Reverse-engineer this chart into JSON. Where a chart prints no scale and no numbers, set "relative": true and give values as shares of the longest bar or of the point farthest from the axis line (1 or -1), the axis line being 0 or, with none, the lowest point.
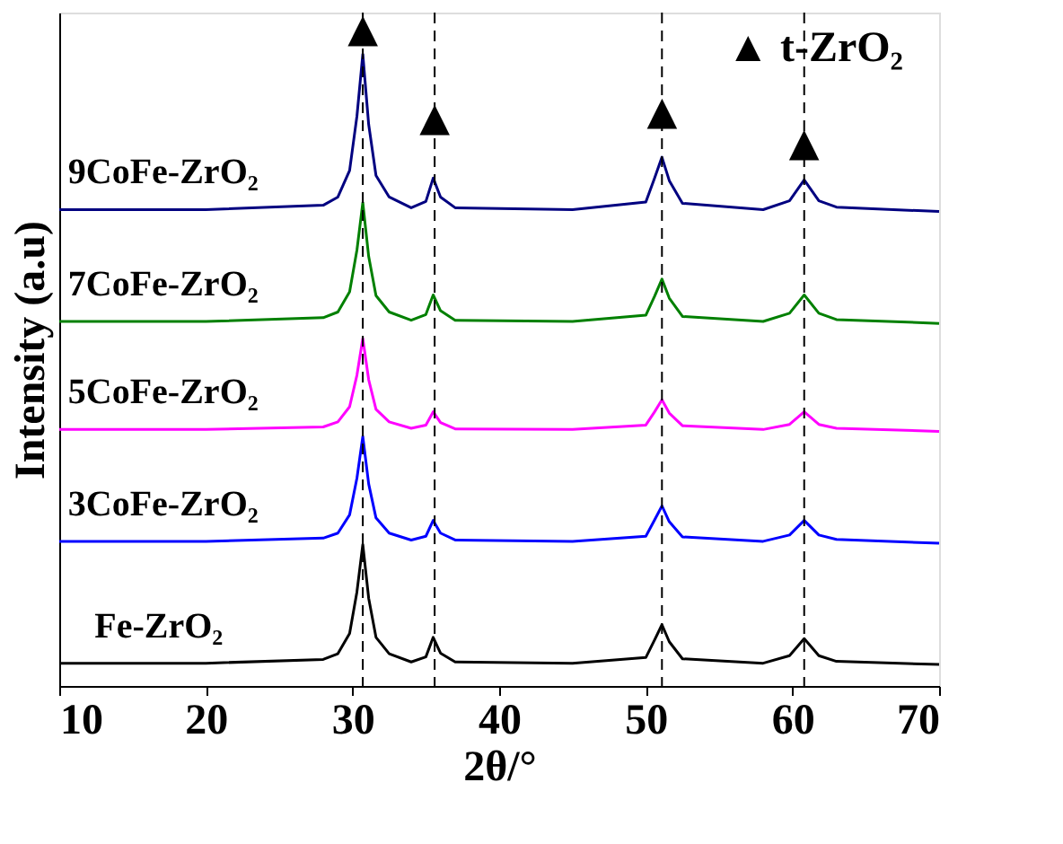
{
  "chart_data": {
    "type": "line",
    "relative": true,
    "xlabel": "2θ/°",
    "ylabel": "Intensity (a.u)",
    "xlim": [
      10,
      70
    ],
    "xticks": [
      10,
      20,
      30,
      40,
      50,
      60,
      70
    ],
    "tick_labels": "x",
    "grid": false,
    "legend": false,
    "line_style": "solid",
    "marker": "none",
    "x": [
      10,
      20,
      28,
      29,
      29.8,
      30.3,
      30.7,
      31.1,
      31.6,
      32.5,
      34,
      35,
      35.5,
      36,
      37,
      45,
      50,
      50.6,
      51.1,
      51.6,
      52.5,
      58,
      59.8,
      60.8,
      61.8,
      63,
      70
    ],
    "series": [
      {
        "name": "Fe-ZrO₂",
        "color": "#000000",
        "values": [
          0.036,
          0.036,
          0.042,
          0.051,
          0.083,
          0.149,
          0.224,
          0.139,
          0.077,
          0.051,
          0.038,
          0.046,
          0.077,
          0.052,
          0.038,
          0.036,
          0.045,
          0.073,
          0.097,
          0.07,
          0.043,
          0.036,
          0.048,
          0.075,
          0.048,
          0.039,
          0.034
        ]
      },
      {
        "name": "3CoFe-ZrO₂",
        "color": "#0000ff",
        "values": [
          0.229,
          0.229,
          0.234,
          0.242,
          0.271,
          0.329,
          0.395,
          0.32,
          0.266,
          0.242,
          0.231,
          0.237,
          0.262,
          0.242,
          0.231,
          0.229,
          0.237,
          0.263,
          0.285,
          0.26,
          0.236,
          0.229,
          0.239,
          0.262,
          0.239,
          0.232,
          0.226
        ]
      },
      {
        "name": "5CoFe-ZrO₂",
        "color": "#ff00ff",
        "values": [
          0.406,
          0.406,
          0.41,
          0.418,
          0.442,
          0.492,
          0.55,
          0.485,
          0.438,
          0.418,
          0.408,
          0.413,
          0.434,
          0.417,
          0.407,
          0.406,
          0.413,
          0.434,
          0.453,
          0.432,
          0.412,
          0.406,
          0.414,
          0.434,
          0.414,
          0.408,
          0.403
        ]
      },
      {
        "name": "7CoFe-ZrO₂",
        "color": "#008000",
        "values": [
          0.577,
          0.577,
          0.583,
          0.592,
          0.624,
          0.69,
          0.765,
          0.68,
          0.618,
          0.592,
          0.579,
          0.588,
          0.619,
          0.594,
          0.579,
          0.577,
          0.587,
          0.617,
          0.644,
          0.614,
          0.585,
          0.577,
          0.59,
          0.619,
          0.59,
          0.58,
          0.574
        ]
      },
      {
        "name": "9CoFe-ZrO₂",
        "color": "#000080",
        "values": [
          0.754,
          0.754,
          0.761,
          0.774,
          0.816,
          0.902,
          1.0,
          0.889,
          0.808,
          0.774,
          0.757,
          0.767,
          0.804,
          0.774,
          0.757,
          0.754,
          0.766,
          0.804,
          0.837,
          0.8,
          0.764,
          0.754,
          0.768,
          0.801,
          0.768,
          0.758,
          0.751
        ]
      }
    ],
    "ref_lines": [
      {
        "axis": "x",
        "value": 30.7,
        "line_style": "dashed",
        "color": "#000000"
      },
      {
        "axis": "x",
        "value": 35.6,
        "line_style": "dashed",
        "color": "#000000"
      },
      {
        "axis": "x",
        "value": 51.1,
        "line_style": "dashed",
        "color": "#000000"
      },
      {
        "axis": "x",
        "value": 60.8,
        "line_style": "dashed",
        "color": "#000000"
      }
    ],
    "annotations": [
      {
        "text": "▲",
        "x": 30.7,
        "y": 1.04
      },
      {
        "text": "▲",
        "x": 35.6,
        "y": 0.9
      },
      {
        "text": "▲",
        "x": 51.1,
        "y": 0.91
      },
      {
        "text": "▲",
        "x": 60.8,
        "y": 0.86
      },
      "▲ t-ZrO₂"
    ]
  }
}
